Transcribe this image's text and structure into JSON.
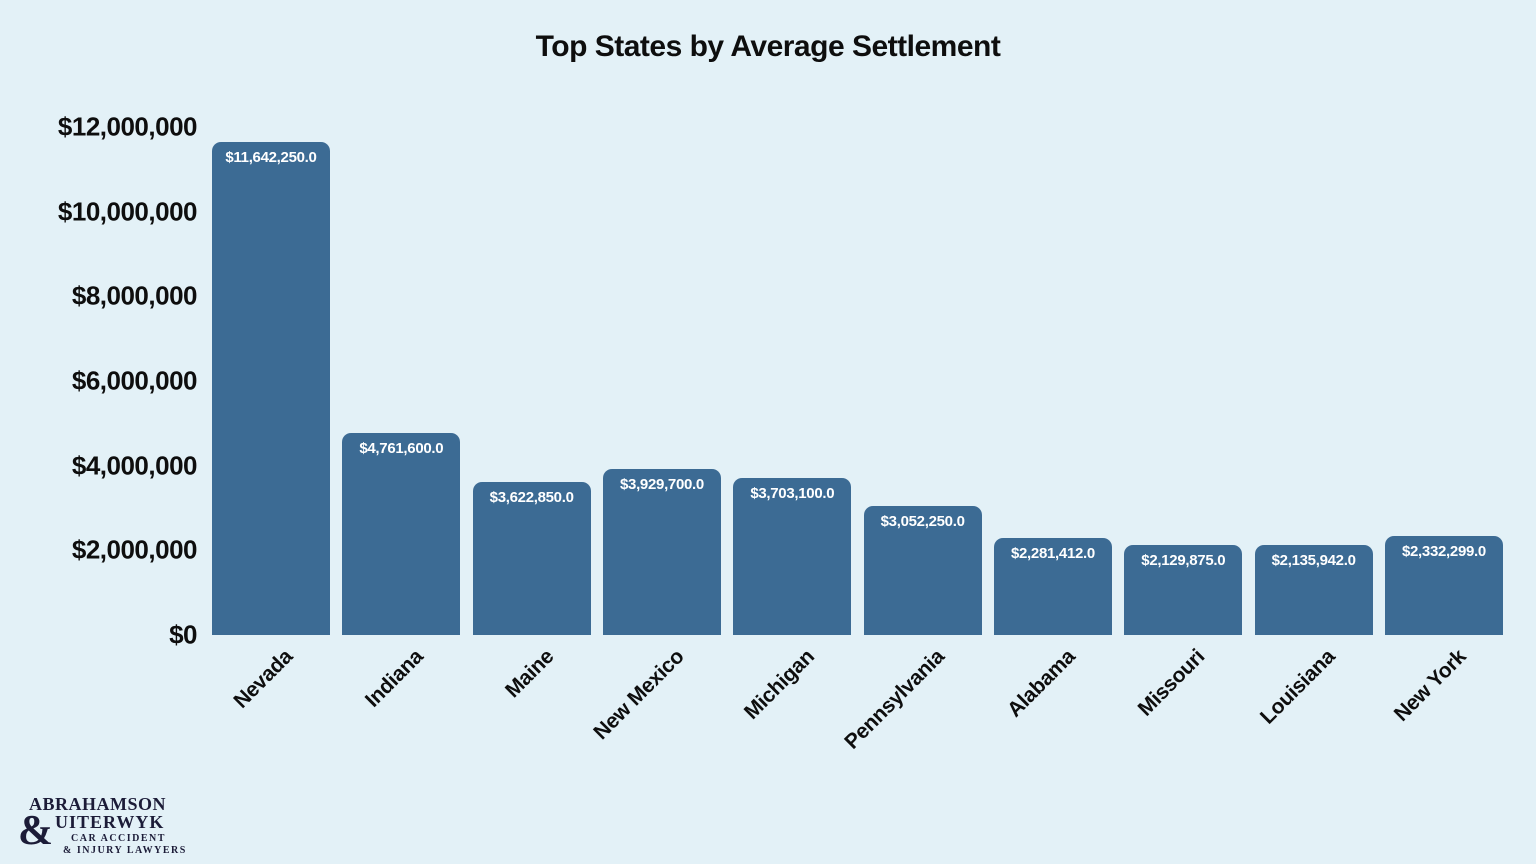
{
  "title": "Top States by Average Settlement",
  "colors": {
    "background": "#e3f1f7",
    "bar": "#3c6b94",
    "bar_label": "#ffffff",
    "text": "#0e0e0e",
    "logo": "#1c1c38"
  },
  "chart_data": {
    "type": "bar",
    "title": "Top States by Average Settlement",
    "categories": [
      "Nevada",
      "Indiana",
      "Maine",
      "New Mexico",
      "Michigan",
      "Pennsylvania",
      "Alabama",
      "Missouri",
      "Louisiana",
      "New York"
    ],
    "values": [
      11642250,
      4761600,
      3622850,
      3929700,
      3703100,
      3052250,
      2281412,
      2129875,
      2135942,
      2332299
    ],
    "value_labels": [
      "$11,642,250.0",
      "$4,761,600.0",
      "$3,622,850.0",
      "$3,929,700.0",
      "$3,703,100.0",
      "$3,052,250.0",
      "$2,281,412.0",
      "$2,129,875.0",
      "$2,135,942.0",
      "$2,332,299.0"
    ],
    "xlabel": "",
    "ylabel": "",
    "ylim": [
      0,
      12000000
    ],
    "ytick_step": 2000000,
    "ytick_labels_top_to_bottom": [
      "$12,000,000",
      "$10,000,000",
      "$8,000,000",
      "$6,000,000",
      "$4,000,000",
      "$2,000,000",
      "$0"
    ],
    "grid": false,
    "legend": null,
    "bar_corner_radius": "rounded-top",
    "xtick_rotation_deg": -45
  },
  "logo": {
    "line1": "ABRAHAMSON",
    "amp": "&",
    "line2": "UITERWYK",
    "line3": "CAR ACCIDENT",
    "line4": "& INJURY LAWYERS"
  }
}
